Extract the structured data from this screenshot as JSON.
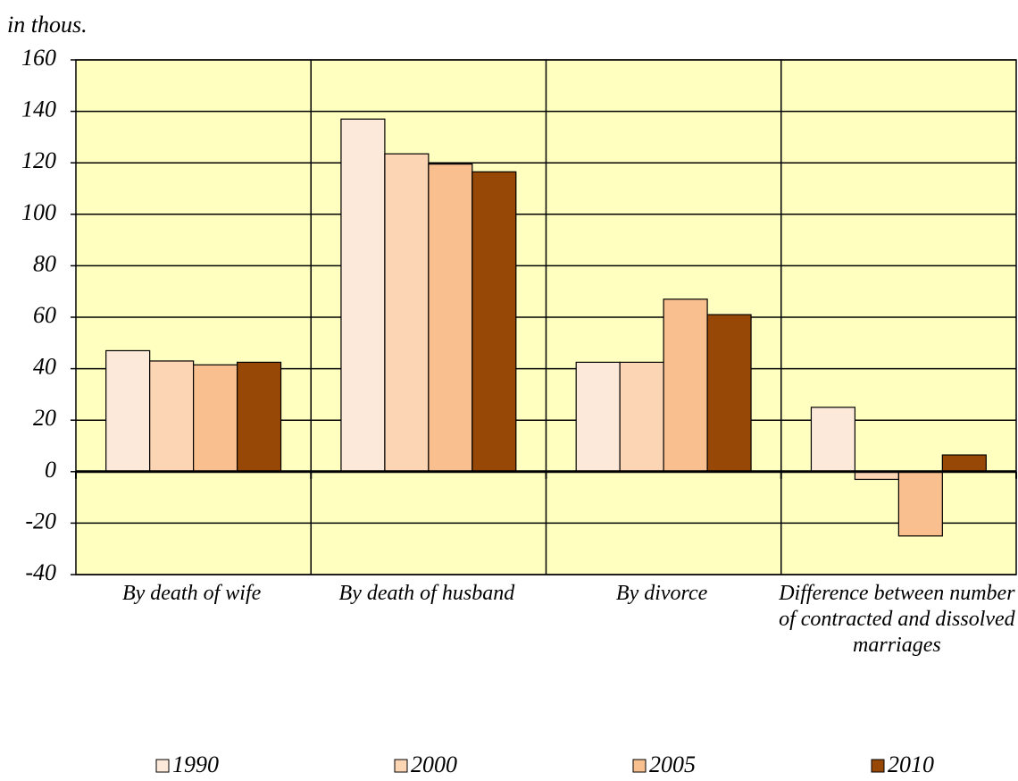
{
  "chart_data": {
    "type": "bar",
    "unit_label": "in thous.",
    "categories": [
      "By death of wife",
      "By death of husband",
      "By divorce",
      "Difference between number of contracted and dissolved marriages"
    ],
    "series": [
      {
        "name": "1990",
        "color": "#fde9d9",
        "values": [
          47,
          137,
          42.5,
          25
        ]
      },
      {
        "name": "2000",
        "color": "#fcd5b4",
        "values": [
          43,
          123.5,
          42.5,
          -3
        ]
      },
      {
        "name": "2005",
        "color": "#fabf8f",
        "values": [
          41.5,
          119.5,
          67,
          -25
        ]
      },
      {
        "name": "2010",
        "color": "#974706",
        "values": [
          42.5,
          116.5,
          61,
          6.5
        ]
      }
    ],
    "ylim": [
      -40,
      160
    ],
    "yticks": [
      -40,
      -20,
      0,
      20,
      40,
      60,
      80,
      100,
      120,
      140,
      160
    ],
    "grid": true,
    "legend": "bottom"
  }
}
